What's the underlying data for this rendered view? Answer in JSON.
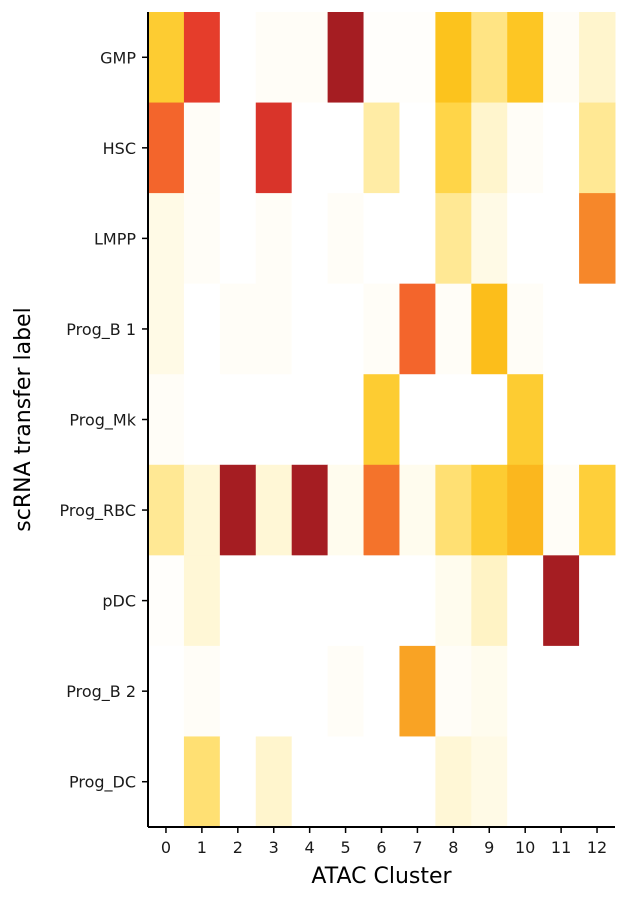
{
  "chart_data": {
    "type": "heatmap",
    "xlabel": "ATAC Cluster",
    "ylabel": "scRNA transfer label",
    "x_categories": [
      "0",
      "1",
      "2",
      "3",
      "4",
      "5",
      "6",
      "7",
      "8",
      "9",
      "10",
      "11",
      "12"
    ],
    "y_categories": [
      "GMP",
      "HSC",
      "LMPP",
      "Prog_B 1",
      "Prog_Mk",
      "Prog_RBC",
      "pDC",
      "Prog_B 2",
      "Prog_DC"
    ],
    "value_range": [
      0,
      1
    ],
    "colors": [
      "#ffffff",
      "#fff3c4",
      "#ffd74d",
      "#fcc21a",
      "#f7912a",
      "#f2602c",
      "#e3382b",
      "#a51d22"
    ],
    "values": [
      [
        0.36,
        0.84,
        0.0,
        0.02,
        0.02,
        1.0,
        0.01,
        0.01,
        0.42,
        0.22,
        0.4,
        0.02,
        0.12
      ],
      [
        0.7,
        0.02,
        0.0,
        0.88,
        0.0,
        0.0,
        0.18,
        0.0,
        0.3,
        0.12,
        0.02,
        0.0,
        0.2
      ],
      [
        0.06,
        0.02,
        0.0,
        0.02,
        0.0,
        0.02,
        0.0,
        0.0,
        0.2,
        0.06,
        0.0,
        0.0,
        0.6
      ],
      [
        0.06,
        0.0,
        0.02,
        0.02,
        0.0,
        0.0,
        0.02,
        0.7,
        0.02,
        0.44,
        0.02,
        0.0,
        0.0
      ],
      [
        0.02,
        0.0,
        0.0,
        0.0,
        0.0,
        0.0,
        0.36,
        0.0,
        0.0,
        0.0,
        0.36,
        0.0,
        0.0
      ],
      [
        0.2,
        0.1,
        1.0,
        0.1,
        1.0,
        0.04,
        0.66,
        0.04,
        0.24,
        0.36,
        0.46,
        0.02,
        0.34
      ],
      [
        0.01,
        0.1,
        0.0,
        0.0,
        0.0,
        0.0,
        0.0,
        0.0,
        0.04,
        0.14,
        0.0,
        1.0,
        0.0
      ],
      [
        0.0,
        0.02,
        0.0,
        0.0,
        0.0,
        0.02,
        0.0,
        0.52,
        0.02,
        0.04,
        0.0,
        0.0,
        0.0
      ],
      [
        0.0,
        0.24,
        0.0,
        0.12,
        0.0,
        0.0,
        0.0,
        0.0,
        0.1,
        0.06,
        0.0,
        0.0,
        0.0
      ]
    ]
  }
}
